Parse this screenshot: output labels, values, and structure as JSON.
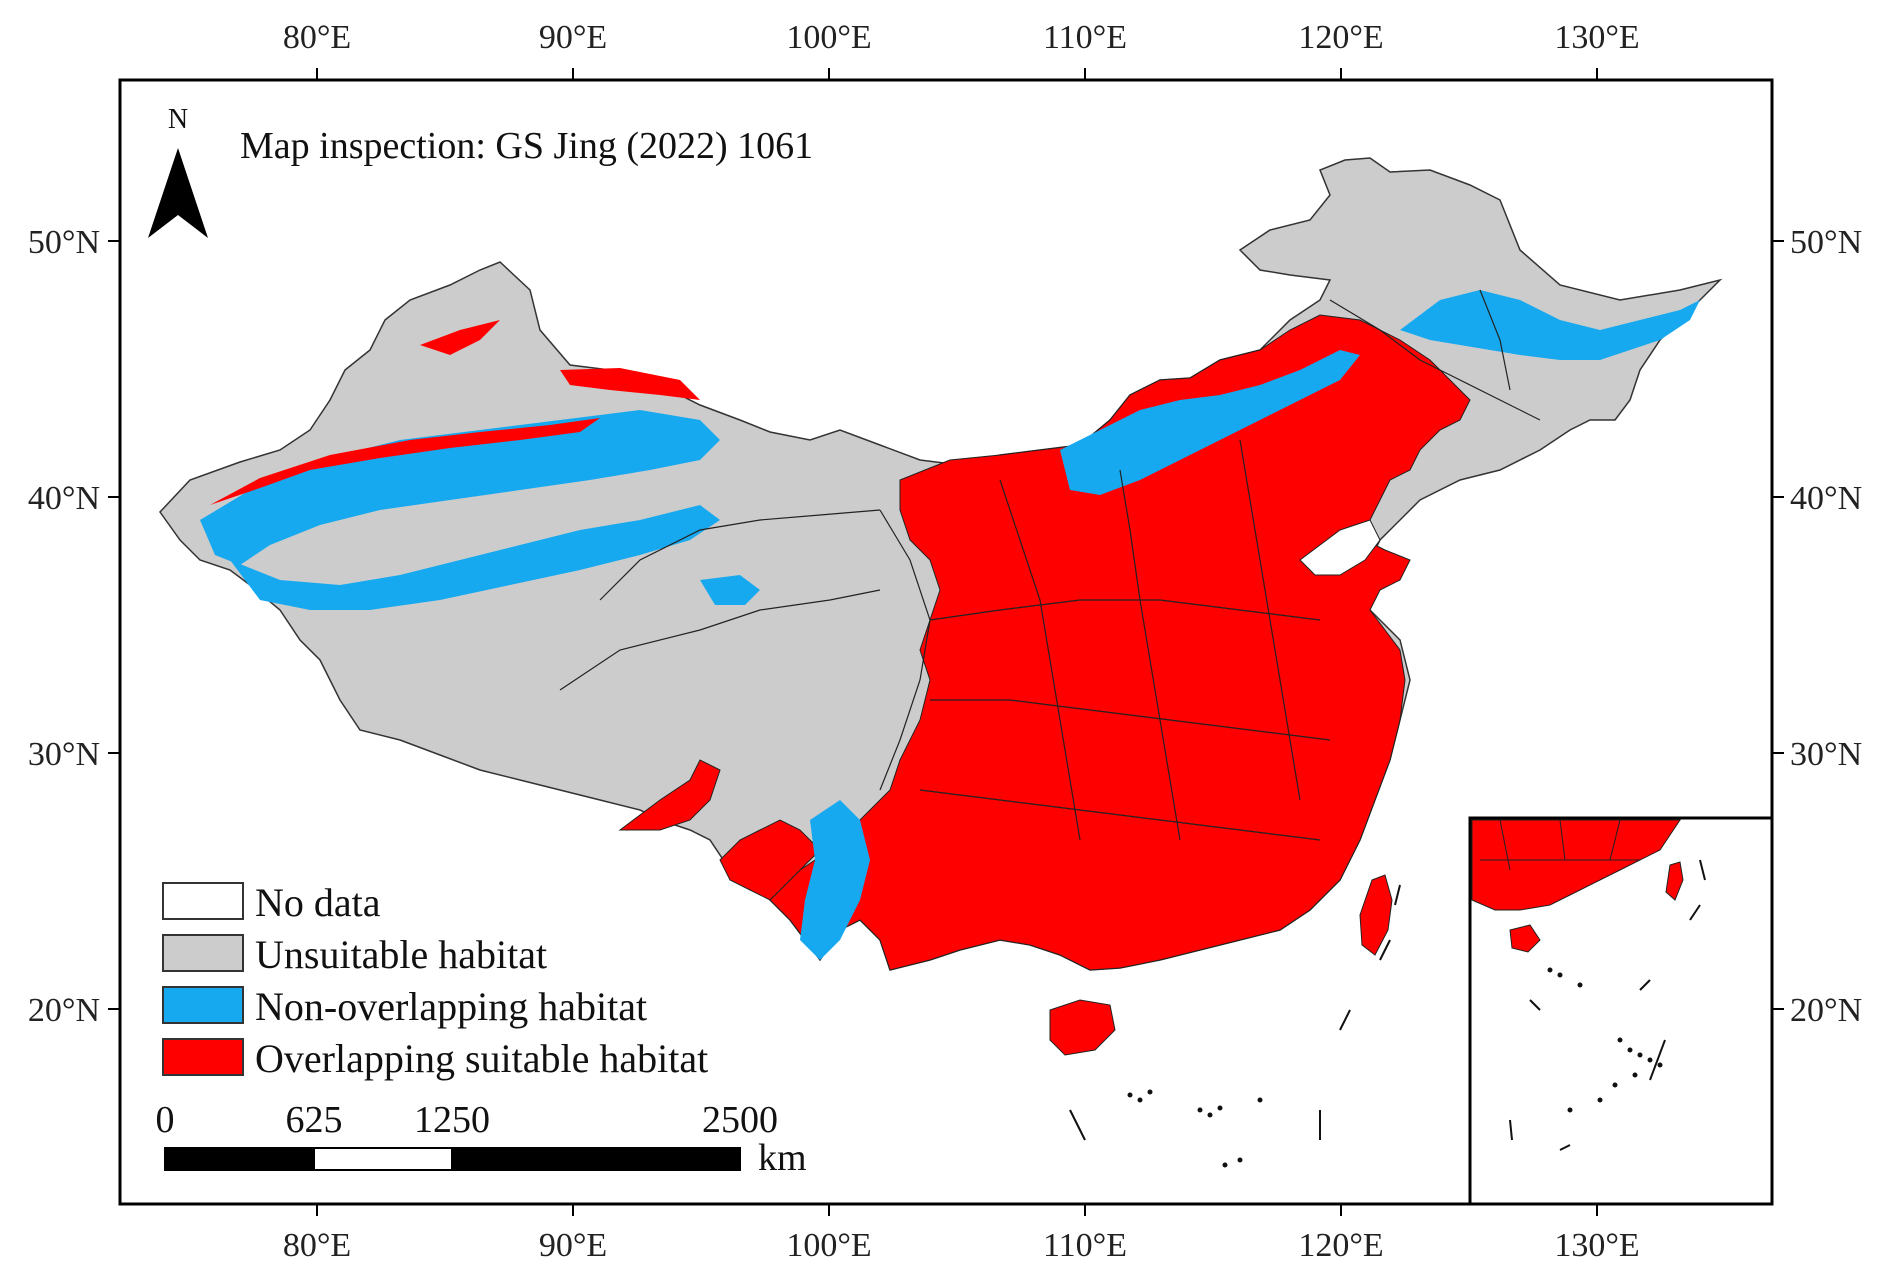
{
  "map": {
    "inspection_note": "Map inspection: GS Jing (2022) 1061",
    "north_label": "N",
    "longitude_labels": [
      "80°E",
      "90°E",
      "100°E",
      "110°E",
      "120°E",
      "130°E"
    ],
    "latitude_labels": [
      "50°N",
      "40°N",
      "30°N",
      "20°N"
    ]
  },
  "legend": {
    "items": [
      {
        "label": "No data",
        "color": "#ffffff"
      },
      {
        "label": "Unsuitable habitat",
        "color": "#cccccc"
      },
      {
        "label": "Non-overlapping habitat",
        "color": "#17a9ef"
      },
      {
        "label": "Overlapping suitable habitat",
        "color": "#ff0000"
      }
    ]
  },
  "scale_bar": {
    "ticks": [
      "0",
      "625",
      "1250",
      "2500"
    ],
    "unit": "km"
  },
  "colors": {
    "unsuitable": "#cccccc",
    "non_overlapping": "#17a9ef",
    "overlapping": "#ff0000",
    "frame": "#000000"
  }
}
